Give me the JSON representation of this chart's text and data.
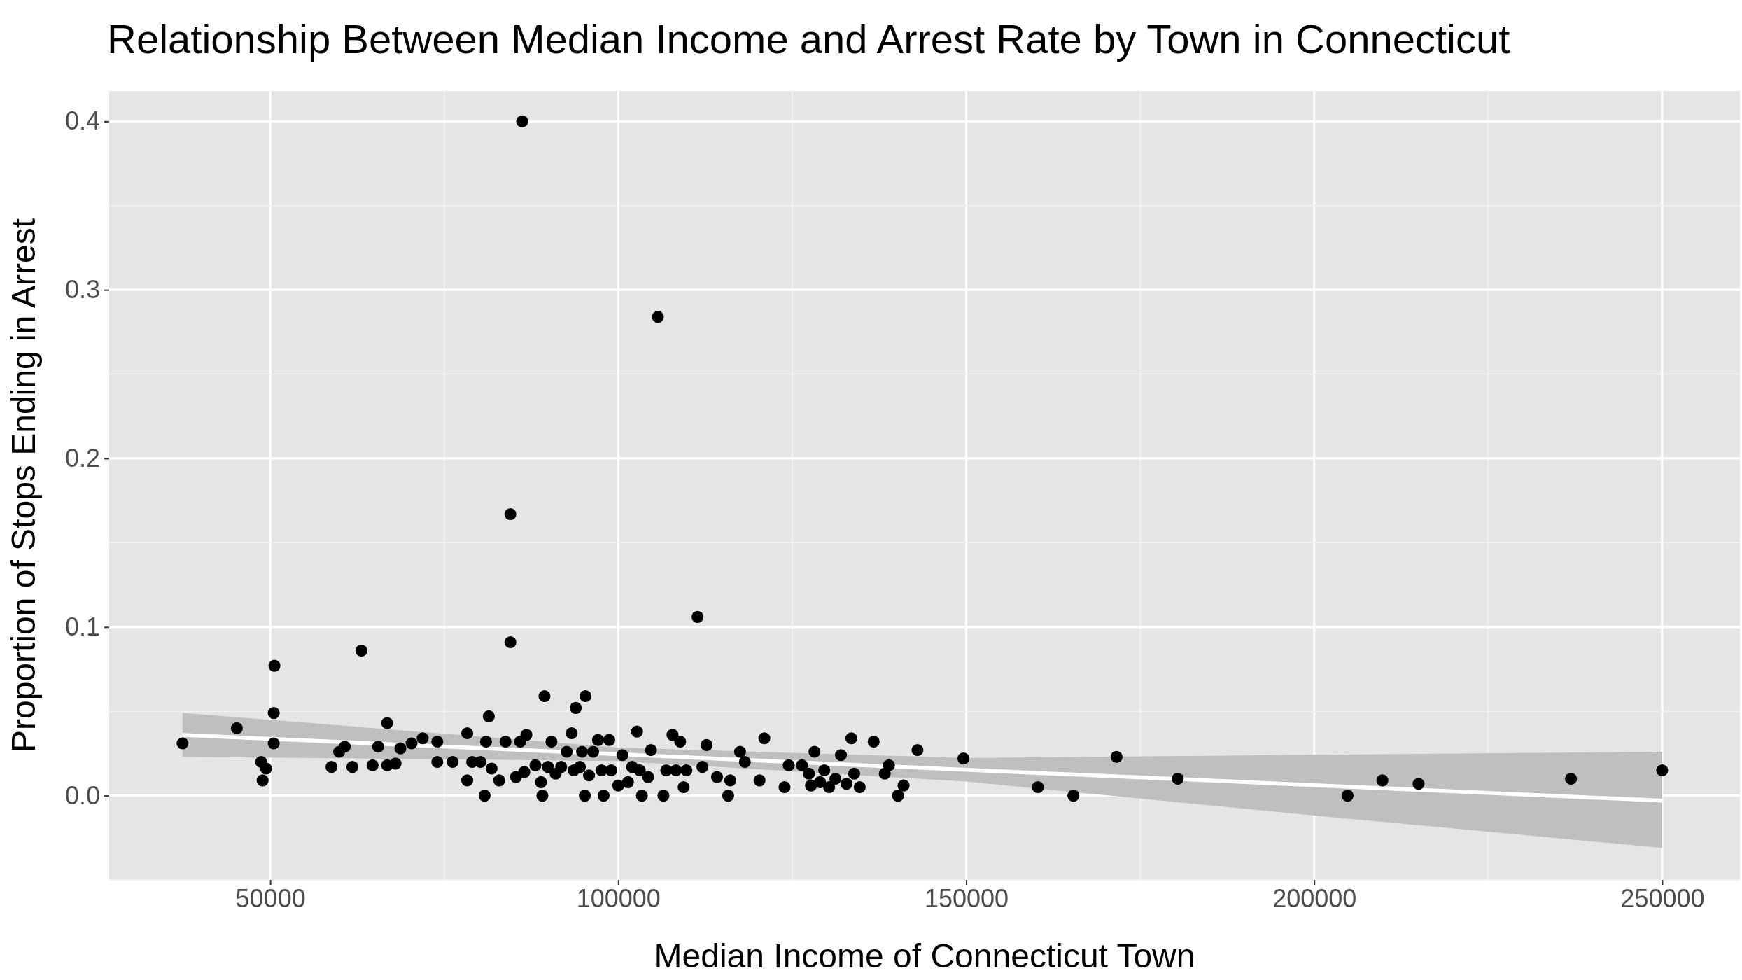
{
  "chart_data": {
    "type": "scatter",
    "title": "Relationship Between Median Income and Arrest Rate by Town in Connecticut",
    "xlabel": "Median Income of Connecticut Town",
    "ylabel": "Proportion of Stops Ending in Arrest",
    "xlim": [
      26858,
      261170
    ],
    "xticks": [
      50000,
      100000,
      150000,
      200000,
      250000
    ],
    "ylim": [
      -0.05,
      0.418
    ],
    "yticks": [
      {
        "value": 0,
        "label": "0.0"
      },
      0.1,
      0.2,
      0.3,
      0.4
    ],
    "grid": true,
    "marker": "circle",
    "series": [
      {
        "type": "line",
        "color": "#ffffff",
        "x": [
          37400,
          100000,
          150000,
          200000,
          250000
        ],
        "values": [
          0.036,
          0.0245,
          0.0153,
          0.0062,
          -0.003
        ],
        "lower": [
          0.023,
          0.0205,
          0.0083,
          -0.0118,
          -0.031
        ],
        "upper": [
          0.049,
          0.0285,
          0.0223,
          0.0242,
          0.026
        ],
        "marker": "none"
      },
      {
        "color": "#000000",
        "x": [
          37400,
          45200,
          48700,
          48900,
          49400,
          50600,
          50500,
          50500,
          58800,
          59900,
          60700,
          61800,
          63100,
          64700,
          65500,
          66800,
          66800,
          68000,
          68700,
          70300,
          71900,
          74000,
          74000,
          76200,
          78300,
          78300,
          79000,
          80200,
          80800,
          81000,
          81400,
          81800,
          82900,
          83800,
          84500,
          84500,
          85300,
          85900,
          86200,
          86500,
          86800,
          88100,
          88900,
          89100,
          89400,
          89900,
          90400,
          91000,
          91800,
          92600,
          93300,
          93600,
          93900,
          94500,
          94800,
          95200,
          95300,
          95800,
          96400,
          97100,
          97600,
          97900,
          98700,
          99000,
          100000,
          100600,
          101400,
          102000,
          102700,
          103100,
          103400,
          104300,
          104700,
          105700,
          106500,
          106900,
          107800,
          108300,
          108900,
          109400,
          109800,
          111400,
          112100,
          112700,
          114200,
          115800,
          116100,
          117500,
          118200,
          120300,
          121000,
          123900,
          124500,
          126400,
          127400,
          127700,
          128200,
          129000,
          129600,
          130300,
          131200,
          132000,
          132800,
          133500,
          133900,
          134700,
          136700,
          138300,
          138900,
          140200,
          141000,
          143000,
          149600,
          160300,
          165400,
          171600,
          180400,
          204800,
          209800,
          215000,
          236900,
          250000
        ],
        "values": [
          0.031,
          0.04,
          0.02,
          0.009,
          0.016,
          0.077,
          0.049,
          0.031,
          0.017,
          0.026,
          0.029,
          0.017,
          0.086,
          0.018,
          0.029,
          0.043,
          0.018,
          0.019,
          0.028,
          0.031,
          0.034,
          0.032,
          0.02,
          0.02,
          0.037,
          0.009,
          0.02,
          0.02,
          0.0,
          0.032,
          0.047,
          0.016,
          0.009,
          0.032,
          0.091,
          0.167,
          0.011,
          0.032,
          0.4,
          0.014,
          0.036,
          0.018,
          0.008,
          0.0,
          0.059,
          0.017,
          0.032,
          0.013,
          0.017,
          0.026,
          0.037,
          0.015,
          0.052,
          0.017,
          0.026,
          0.0,
          0.059,
          0.012,
          0.026,
          0.033,
          0.015,
          0.0,
          0.033,
          0.015,
          0.006,
          0.024,
          0.008,
          0.017,
          0.038,
          0.015,
          0.0,
          0.011,
          0.027,
          0.284,
          0.0,
          0.015,
          0.036,
          0.015,
          0.032,
          0.005,
          0.015,
          0.106,
          0.017,
          0.03,
          0.011,
          0.0,
          0.009,
          0.026,
          0.02,
          0.009,
          0.034,
          0.005,
          0.018,
          0.018,
          0.013,
          0.006,
          0.026,
          0.008,
          0.015,
          0.005,
          0.01,
          0.024,
          0.007,
          0.034,
          0.013,
          0.005,
          0.032,
          0.013,
          0.018,
          0.0,
          0.006,
          0.027,
          0.022,
          0.005,
          0.0,
          0.023,
          0.01,
          0.0,
          0.009,
          0.007,
          0.01,
          0.015
        ]
      }
    ]
  }
}
